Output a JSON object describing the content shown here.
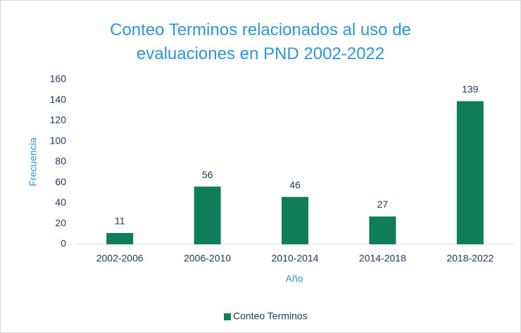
{
  "chart_data": {
    "type": "bar",
    "title": "Conteo Terminos relacionados al uso de evaluaciones en PND 2002-2022",
    "x_label": "Año",
    "y_label": "Frecuencia",
    "categories": [
      "2002-2006",
      "2006-2010",
      "2010-2014",
      "2014-2018",
      "2018-2022"
    ],
    "series": [
      {
        "name": "Conteo Terminos",
        "color": "#0f7d5a",
        "values": [
          11,
          56,
          46,
          27,
          139
        ]
      }
    ],
    "ylim": [
      0,
      160
    ],
    "yticks": [
      0,
      20,
      40,
      60,
      80,
      100,
      120,
      140,
      160
    ],
    "grid": false,
    "data_labels": true,
    "legend": "bottom"
  }
}
